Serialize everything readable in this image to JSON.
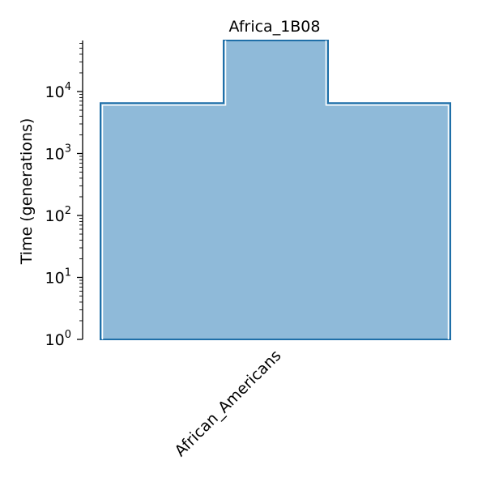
{
  "chart_data": {
    "type": "area",
    "title": "Africa_1B08",
    "ylabel": "Time (generations)",
    "yscale": "log",
    "ylim": [
      1,
      60000
    ],
    "yticks": [
      {
        "value": 1,
        "base": "10",
        "exp": "0"
      },
      {
        "value": 10,
        "base": "10",
        "exp": "1"
      },
      {
        "value": 100,
        "base": "10",
        "exp": "2"
      },
      {
        "value": 1000,
        "base": "10",
        "exp": "3"
      },
      {
        "value": 10000,
        "base": "10",
        "exp": "4"
      }
    ],
    "categories": [
      "African_Americans"
    ],
    "deme": {
      "name": "African_Americans",
      "epochs": [
        {
          "start_time": 6500,
          "end_time": 1,
          "width": "wide"
        },
        {
          "start_time": "inf",
          "end_time": 6500,
          "width": "narrow"
        }
      ]
    },
    "colors": {
      "fill": "#8fbad9",
      "edge": "#1f6fa8",
      "axis": "#000000"
    }
  }
}
